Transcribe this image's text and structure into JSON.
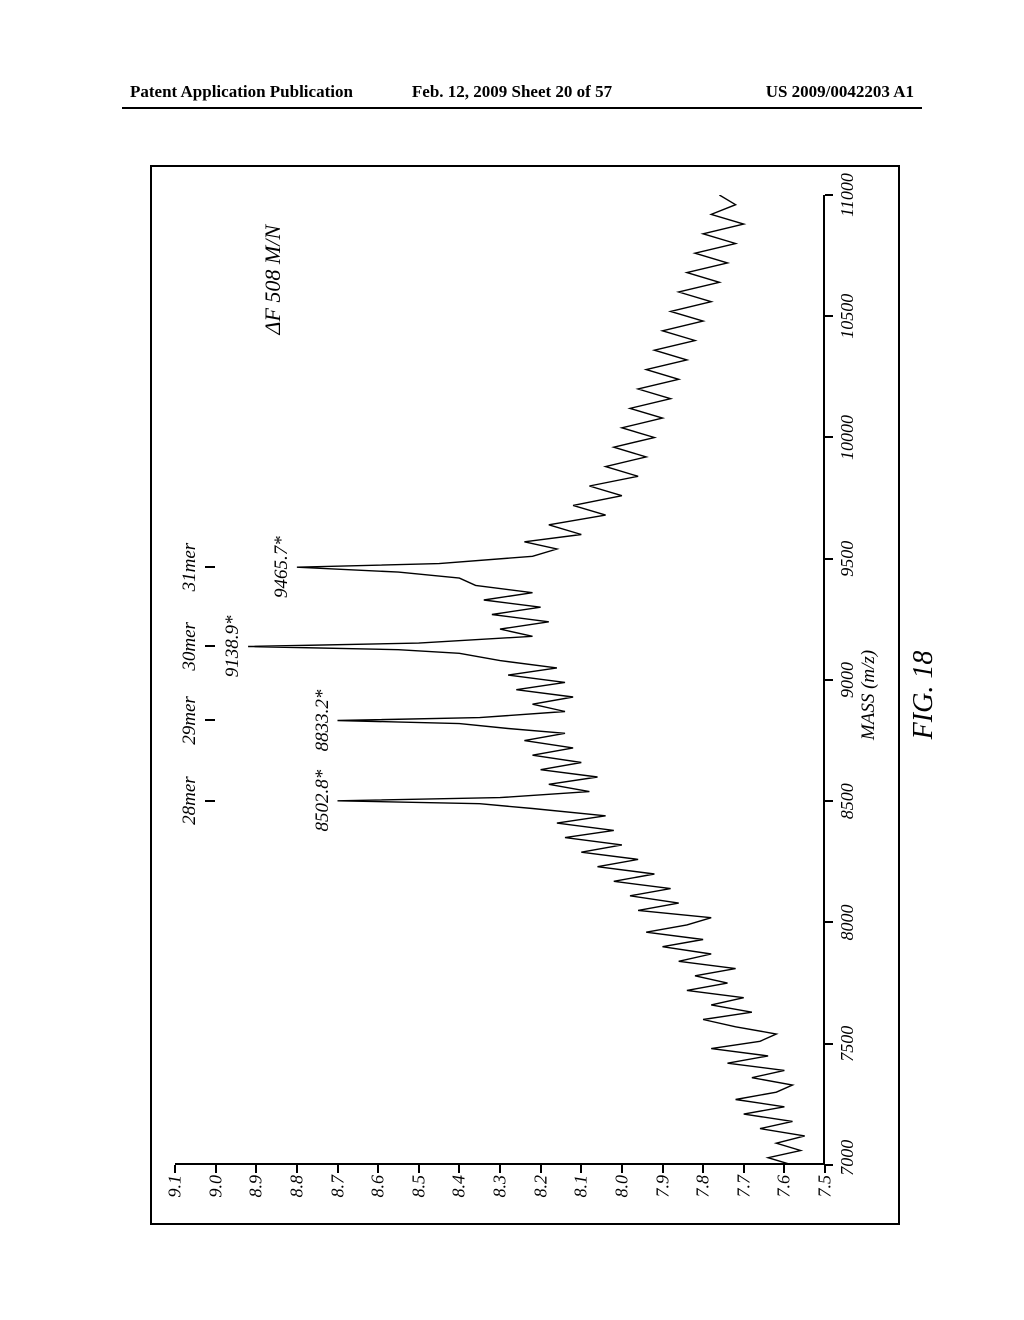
{
  "header": {
    "left": "Patent Application Publication",
    "center": "Feb. 12, 2009  Sheet 20 of 57",
    "right": "US 2009/0042203 A1"
  },
  "figure": {
    "caption": "FIG. 18",
    "annotation": "ΔF 508 M/N",
    "xaxis_title": "MASS (m/z)"
  },
  "chart": {
    "type": "line",
    "xlim": [
      7000,
      11000
    ],
    "ylim": [
      7.5,
      9.1
    ],
    "xtick_step": 500,
    "ytick_step": 0.1,
    "xticks": [
      7000,
      7500,
      8000,
      8500,
      9000,
      9500,
      10000,
      10500,
      11000
    ],
    "yticks": [
      7.5,
      7.6,
      7.7,
      7.8,
      7.9,
      8.0,
      8.1,
      8.2,
      8.3,
      8.4,
      8.5,
      8.6,
      8.7,
      8.8,
      8.9,
      9.0,
      9.1
    ],
    "line_color": "#000000",
    "line_width": 1.2,
    "background_color": "#ffffff",
    "peaks": [
      {
        "label": "28mer",
        "mass": 8502.8,
        "value_label": "8502.8*",
        "intensity": 8.7
      },
      {
        "label": "29mer",
        "mass": 8833.2,
        "value_label": "8833.2*",
        "intensity": 8.7
      },
      {
        "label": "30mer",
        "mass": 9138.9,
        "value_label": "9138.9*",
        "intensity": 8.92
      },
      {
        "label": "31mer",
        "mass": 9465.7,
        "value_label": "9465.7*",
        "intensity": 8.8
      }
    ],
    "data": [
      [
        7000,
        7.58
      ],
      [
        7030,
        7.64
      ],
      [
        7060,
        7.56
      ],
      [
        7090,
        7.62
      ],
      [
        7120,
        7.55
      ],
      [
        7150,
        7.66
      ],
      [
        7180,
        7.58
      ],
      [
        7210,
        7.7
      ],
      [
        7240,
        7.6
      ],
      [
        7270,
        7.72
      ],
      [
        7300,
        7.62
      ],
      [
        7330,
        7.58
      ],
      [
        7360,
        7.68
      ],
      [
        7390,
        7.6
      ],
      [
        7420,
        7.74
      ],
      [
        7450,
        7.64
      ],
      [
        7480,
        7.78
      ],
      [
        7510,
        7.66
      ],
      [
        7540,
        7.62
      ],
      [
        7570,
        7.72
      ],
      [
        7600,
        7.8
      ],
      [
        7630,
        7.68
      ],
      [
        7660,
        7.78
      ],
      [
        7690,
        7.7
      ],
      [
        7720,
        7.84
      ],
      [
        7750,
        7.74
      ],
      [
        7780,
        7.82
      ],
      [
        7810,
        7.72
      ],
      [
        7840,
        7.86
      ],
      [
        7870,
        7.78
      ],
      [
        7900,
        7.9
      ],
      [
        7930,
        7.8
      ],
      [
        7960,
        7.94
      ],
      [
        7990,
        7.84
      ],
      [
        8020,
        7.78
      ],
      [
        8050,
        7.96
      ],
      [
        8080,
        7.86
      ],
      [
        8110,
        7.98
      ],
      [
        8140,
        7.88
      ],
      [
        8170,
        8.02
      ],
      [
        8200,
        7.92
      ],
      [
        8230,
        8.06
      ],
      [
        8260,
        7.96
      ],
      [
        8290,
        8.1
      ],
      [
        8320,
        8.0
      ],
      [
        8350,
        8.14
      ],
      [
        8380,
        8.02
      ],
      [
        8410,
        8.16
      ],
      [
        8440,
        8.04
      ],
      [
        8470,
        8.22
      ],
      [
        8490,
        8.35
      ],
      [
        8502,
        8.7
      ],
      [
        8515,
        8.3
      ],
      [
        8540,
        8.08
      ],
      [
        8570,
        8.18
      ],
      [
        8600,
        8.06
      ],
      [
        8630,
        8.2
      ],
      [
        8660,
        8.1
      ],
      [
        8690,
        8.22
      ],
      [
        8720,
        8.12
      ],
      [
        8750,
        8.24
      ],
      [
        8780,
        8.14
      ],
      [
        8800,
        8.28
      ],
      [
        8820,
        8.4
      ],
      [
        8833,
        8.7
      ],
      [
        8845,
        8.35
      ],
      [
        8870,
        8.14
      ],
      [
        8900,
        8.22
      ],
      [
        8930,
        8.12
      ],
      [
        8960,
        8.26
      ],
      [
        8990,
        8.14
      ],
      [
        9020,
        8.28
      ],
      [
        9050,
        8.16
      ],
      [
        9080,
        8.3
      ],
      [
        9110,
        8.4
      ],
      [
        9125,
        8.55
      ],
      [
        9138,
        8.92
      ],
      [
        9152,
        8.5
      ],
      [
        9180,
        8.22
      ],
      [
        9210,
        8.3
      ],
      [
        9240,
        8.18
      ],
      [
        9270,
        8.32
      ],
      [
        9300,
        8.2
      ],
      [
        9330,
        8.34
      ],
      [
        9360,
        8.22
      ],
      [
        9390,
        8.36
      ],
      [
        9420,
        8.4
      ],
      [
        9445,
        8.55
      ],
      [
        9465,
        8.8
      ],
      [
        9480,
        8.45
      ],
      [
        9510,
        8.22
      ],
      [
        9540,
        8.16
      ],
      [
        9570,
        8.24
      ],
      [
        9600,
        8.1
      ],
      [
        9640,
        8.18
      ],
      [
        9680,
        8.04
      ],
      [
        9720,
        8.12
      ],
      [
        9760,
        8.0
      ],
      [
        9800,
        8.08
      ],
      [
        9840,
        7.96
      ],
      [
        9880,
        8.04
      ],
      [
        9920,
        7.94
      ],
      [
        9960,
        8.02
      ],
      [
        10000,
        7.92
      ],
      [
        10040,
        8.0
      ],
      [
        10080,
        7.9
      ],
      [
        10120,
        7.98
      ],
      [
        10160,
        7.88
      ],
      [
        10200,
        7.96
      ],
      [
        10240,
        7.86
      ],
      [
        10280,
        7.94
      ],
      [
        10320,
        7.84
      ],
      [
        10360,
        7.92
      ],
      [
        10400,
        7.82
      ],
      [
        10440,
        7.9
      ],
      [
        10480,
        7.8
      ],
      [
        10520,
        7.88
      ],
      [
        10560,
        7.78
      ],
      [
        10600,
        7.86
      ],
      [
        10640,
        7.76
      ],
      [
        10680,
        7.84
      ],
      [
        10720,
        7.74
      ],
      [
        10760,
        7.82
      ],
      [
        10800,
        7.72
      ],
      [
        10840,
        7.8
      ],
      [
        10880,
        7.7
      ],
      [
        10920,
        7.78
      ],
      [
        10960,
        7.72
      ],
      [
        11000,
        7.76
      ]
    ]
  }
}
